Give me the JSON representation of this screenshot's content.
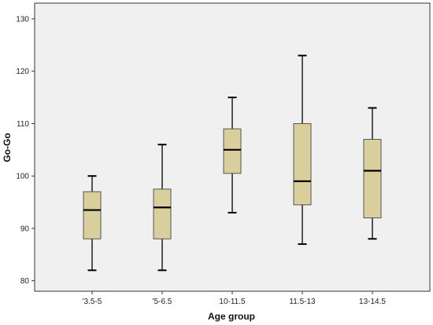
{
  "chart_data": {
    "type": "boxplot",
    "title": "",
    "xlabel": "Age group",
    "ylabel": "Go-Go",
    "ylim": [
      78,
      133
    ],
    "yticks": [
      80,
      90,
      100,
      110,
      120,
      130
    ],
    "grid": false,
    "categories": [
      "'3.5-5",
      "'5-6.5",
      "10-11.5",
      "11.5-13",
      "13-14.5"
    ],
    "boxes": [
      {
        "min": 82,
        "q1": 88,
        "median": 93.5,
        "q3": 97,
        "max": 100
      },
      {
        "min": 82,
        "q1": 88,
        "median": 94,
        "q3": 97.5,
        "max": 106
      },
      {
        "min": 93,
        "q1": 100.5,
        "median": 105,
        "q3": 109,
        "max": 115
      },
      {
        "min": 87,
        "q1": 94.5,
        "median": 99,
        "q3": 110,
        "max": 123
      },
      {
        "min": 88,
        "q1": 92,
        "median": 101,
        "q3": 107,
        "max": 113
      }
    ],
    "colors": {
      "plot_background": "#f0f0f0",
      "box_fill": "#d9cf9d",
      "box_stroke": "#555555",
      "line": "#000000"
    }
  }
}
